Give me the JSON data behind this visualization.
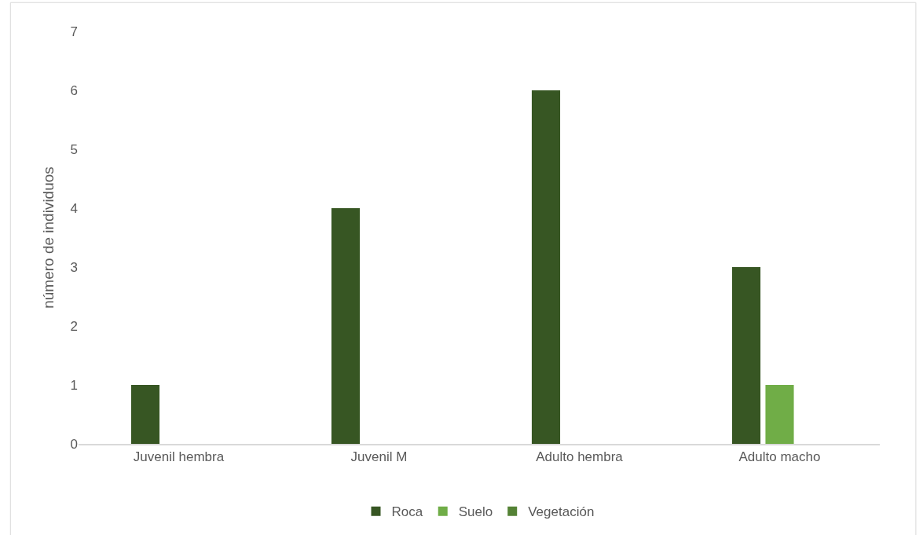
{
  "chart_data": {
    "type": "bar",
    "ylabel": "número de individuos",
    "categories": [
      "Juvenil hembra",
      "Juvenil M",
      "Adulto hembra",
      "Adulto macho"
    ],
    "series": [
      {
        "name": "Roca",
        "color": "#375623",
        "values": [
          1,
          4,
          6,
          3
        ]
      },
      {
        "name": "Suelo",
        "color": "#70ad47",
        "values": [
          0,
          0,
          0,
          1
        ]
      },
      {
        "name": "Vegetación",
        "color": "#548235",
        "values": [
          0,
          0,
          0,
          0
        ]
      }
    ],
    "ylim": [
      0,
      7
    ],
    "yticks": [
      0,
      1,
      2,
      3,
      4,
      5,
      6,
      7
    ],
    "grid": false,
    "legend": "bottom"
  }
}
